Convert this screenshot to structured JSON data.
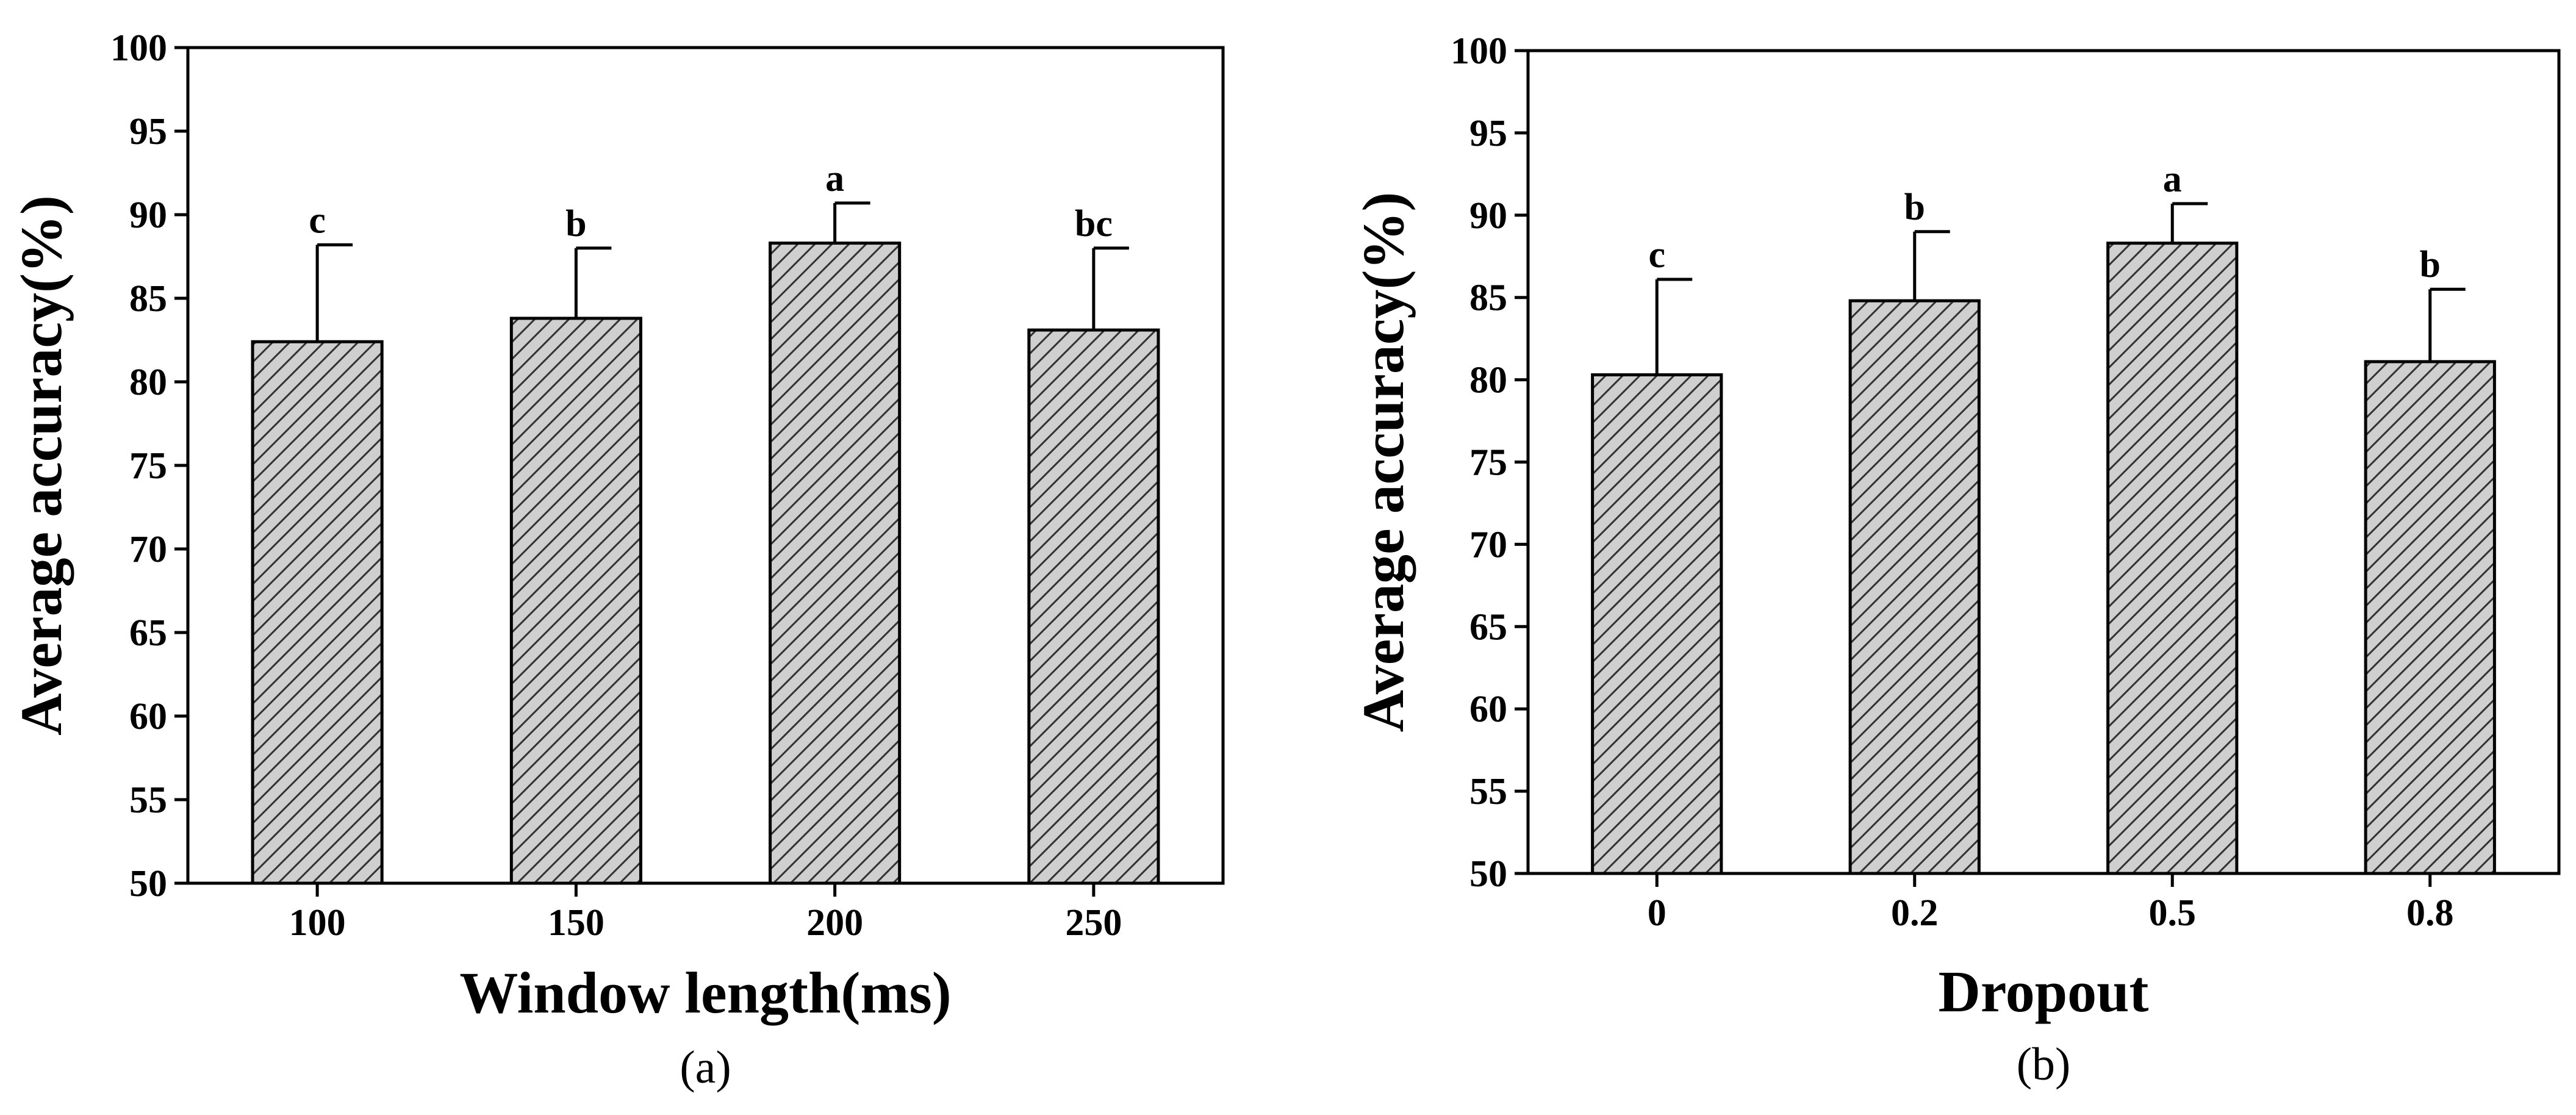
{
  "style": {
    "bar_fill": "#cfcfcf",
    "hatch_color": "#333333",
    "axis_color": "#000000"
  },
  "chart_data": [
    {
      "type": "bar",
      "panel_label": "(a)",
      "categories": [
        "100",
        "150",
        "200",
        "250"
      ],
      "values": [
        82.4,
        83.8,
        88.3,
        83.1
      ],
      "error_upper": [
        88.2,
        88.0,
        90.7,
        88.0
      ],
      "significance": [
        "c",
        "b",
        "a",
        "bc"
      ],
      "xlabel": "Window length(ms)",
      "ylabel": "Average accuracy(%)",
      "ylim": [
        50,
        100
      ],
      "yticks": [
        50,
        55,
        60,
        65,
        70,
        75,
        80,
        85,
        90,
        95,
        100
      ]
    },
    {
      "type": "bar",
      "panel_label": "(b)",
      "categories": [
        "0",
        "0.2",
        "0.5",
        "0.8"
      ],
      "values": [
        80.3,
        84.8,
        88.3,
        81.1
      ],
      "error_upper": [
        86.1,
        89.0,
        90.7,
        85.5
      ],
      "significance": [
        "c",
        "b",
        "a",
        "b"
      ],
      "xlabel": "Dropout",
      "ylabel": "Average accuracy(%)",
      "ylim": [
        50,
        100
      ],
      "yticks": [
        50,
        55,
        60,
        65,
        70,
        75,
        80,
        85,
        90,
        95,
        100
      ]
    }
  ]
}
